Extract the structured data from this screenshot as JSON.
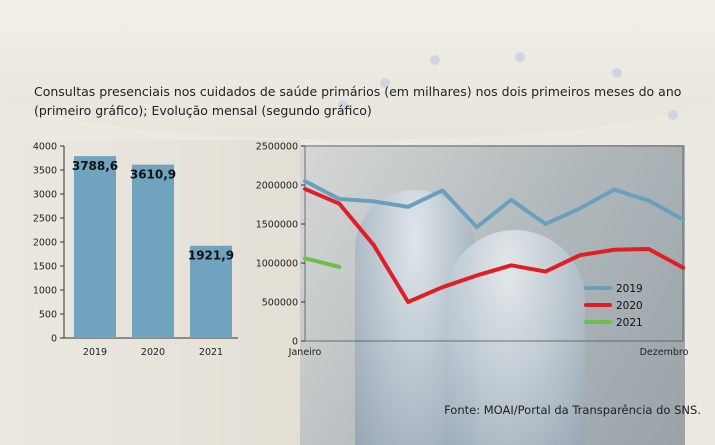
{
  "title": "Consultas presenciais nos cuidados de saúde primários (em milhares) nos dois primeiros meses do ano (primeiro gráfico); Evolução mensal (segundo gráfico)",
  "source": "Fonte: MOAI/Portal da Transparência do SNS.",
  "colors": {
    "bar": "#6fa3be",
    "s2019": "#6aa0bd",
    "s2020": "#e01e25",
    "s2021": "#6cc04a",
    "axis": "#333333"
  },
  "chart_data": [
    {
      "type": "bar",
      "categories": [
        "2019",
        "2020",
        "2021"
      ],
      "values": [
        3788.6,
        3610.9,
        1921.9
      ],
      "value_labels": [
        "3788,6",
        "3610,9",
        "1921,9"
      ],
      "ylim": [
        0,
        4000
      ],
      "yticks": [
        0,
        500,
        1000,
        1500,
        2000,
        2500,
        3000,
        3500,
        4000
      ],
      "grid": false
    },
    {
      "type": "line",
      "ylim": [
        0,
        2500000
      ],
      "yticks": [
        0,
        500000,
        1000000,
        1500000,
        2000000,
        2500000
      ],
      "x_first_label": "Janeiro",
      "x_last_label": "Dezembro",
      "x_count": 12,
      "legend_position": "bottom-right",
      "series": [
        {
          "name": "2019",
          "values": [
            2050000,
            1820000,
            1790000,
            1720000,
            1930000,
            1460000,
            1810000,
            1500000,
            1700000,
            1940000,
            1800000,
            1560000
          ]
        },
        {
          "name": "2020",
          "values": [
            1950000,
            1760000,
            1230000,
            500000,
            690000,
            840000,
            970000,
            890000,
            1100000,
            1170000,
            1180000,
            940000
          ]
        },
        {
          "name": "2021",
          "values": [
            1060000,
            950000
          ]
        }
      ]
    }
  ]
}
